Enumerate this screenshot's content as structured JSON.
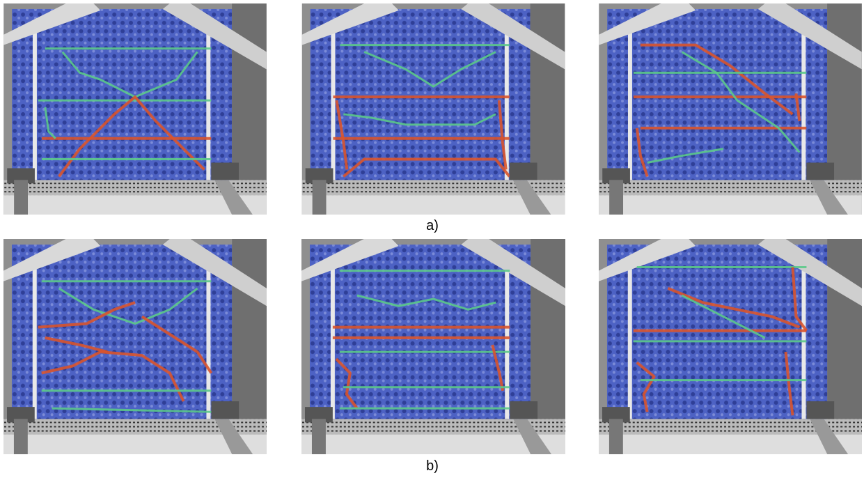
{
  "figure": {
    "rows": [
      {
        "label": "a)"
      },
      {
        "label": "b)"
      }
    ]
  }
}
